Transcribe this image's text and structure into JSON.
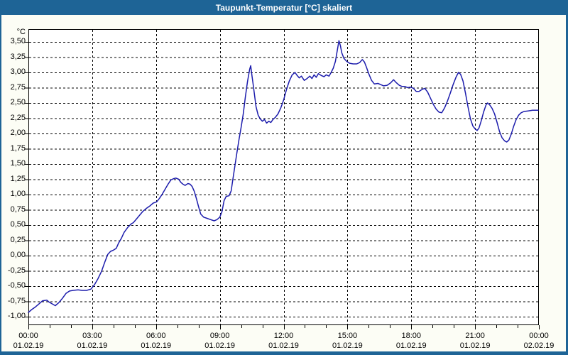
{
  "window": {
    "title": "Taupunkt-Temperatur [°C] skaliert"
  },
  "colors": {
    "titlebar": "#1e6496",
    "window_border": "#1e6496",
    "content_bg": "#fcfdf5",
    "plot_bg": "#ffffff",
    "grid": "#000000",
    "axis": "#000000",
    "text": "#000000",
    "title_text": "#ffffff",
    "line": "#1c1cac"
  },
  "chart_data": {
    "type": "line",
    "title": "Taupunkt-Temperatur [°C] skaliert",
    "ylabel": "°C",
    "xlabel": "",
    "ylim": [
      -1.14,
      3.72
    ],
    "xlim_minutes": [
      0,
      1440
    ],
    "grid": "dashed",
    "legend_position": "none",
    "x_minor_tick_minutes": 60,
    "x_major_tick_minutes": 180,
    "y_ticks": [
      {
        "v": 3.5,
        "label": "3,50"
      },
      {
        "v": 3.25,
        "label": "3,25"
      },
      {
        "v": 3.0,
        "label": "3,00"
      },
      {
        "v": 2.75,
        "label": "2,75"
      },
      {
        "v": 2.5,
        "label": "2,50"
      },
      {
        "v": 2.25,
        "label": "2,25"
      },
      {
        "v": 2.0,
        "label": "2,00"
      },
      {
        "v": 1.75,
        "label": "1,75"
      },
      {
        "v": 1.5,
        "label": "1,50"
      },
      {
        "v": 1.25,
        "label": "1,25"
      },
      {
        "v": 1.0,
        "label": "1,00"
      },
      {
        "v": 0.75,
        "label": "0,75"
      },
      {
        "v": 0.5,
        "label": "0,50"
      },
      {
        "v": 0.25,
        "label": "0,25"
      },
      {
        "v": 0.0,
        "label": "0,00"
      },
      {
        "v": -0.25,
        "label": "-0,25"
      },
      {
        "v": -0.5,
        "label": "-0,50"
      },
      {
        "v": -0.75,
        "label": "-0,75"
      },
      {
        "v": -1.0,
        "label": "-1,00"
      }
    ],
    "x_ticks": [
      {
        "t": 0,
        "time": "00:00",
        "date": "01.02.19"
      },
      {
        "t": 180,
        "time": "03:00",
        "date": "01.02.19"
      },
      {
        "t": 360,
        "time": "06:00",
        "date": "01.02.19"
      },
      {
        "t": 540,
        "time": "09:00",
        "date": "01.02.19"
      },
      {
        "t": 720,
        "time": "12:00",
        "date": "01.02.19"
      },
      {
        "t": 900,
        "time": "15:00",
        "date": "01.02.19"
      },
      {
        "t": 1080,
        "time": "18:00",
        "date": "01.02.19"
      },
      {
        "t": 1260,
        "time": "21:00",
        "date": "01.02.19"
      },
      {
        "t": 1440,
        "time": "00:00",
        "date": "02.02.19"
      }
    ],
    "series": [
      {
        "name": "Taupunkt-Temperatur",
        "color": "#1c1cac",
        "points": [
          [
            0,
            -0.93
          ],
          [
            10,
            -0.88
          ],
          [
            20,
            -0.84
          ],
          [
            30,
            -0.79
          ],
          [
            40,
            -0.74
          ],
          [
            52,
            -0.73
          ],
          [
            58,
            -0.76
          ],
          [
            64,
            -0.78
          ],
          [
            76,
            -0.82
          ],
          [
            86,
            -0.77
          ],
          [
            96,
            -0.7
          ],
          [
            106,
            -0.62
          ],
          [
            116,
            -0.58
          ],
          [
            126,
            -0.57
          ],
          [
            140,
            -0.56
          ],
          [
            152,
            -0.57
          ],
          [
            164,
            -0.57
          ],
          [
            176,
            -0.55
          ],
          [
            186,
            -0.48
          ],
          [
            196,
            -0.38
          ],
          [
            206,
            -0.26
          ],
          [
            216,
            -0.1
          ],
          [
            224,
            0.02
          ],
          [
            232,
            0.07
          ],
          [
            240,
            0.09
          ],
          [
            248,
            0.12
          ],
          [
            254,
            0.2
          ],
          [
            262,
            0.28
          ],
          [
            270,
            0.38
          ],
          [
            280,
            0.46
          ],
          [
            290,
            0.52
          ],
          [
            296,
            0.54
          ],
          [
            302,
            0.58
          ],
          [
            312,
            0.65
          ],
          [
            322,
            0.72
          ],
          [
            332,
            0.77
          ],
          [
            342,
            0.81
          ],
          [
            352,
            0.86
          ],
          [
            362,
            0.88
          ],
          [
            370,
            0.94
          ],
          [
            378,
            1.01
          ],
          [
            386,
            1.09
          ],
          [
            394,
            1.17
          ],
          [
            402,
            1.24
          ],
          [
            410,
            1.26
          ],
          [
            416,
            1.27
          ],
          [
            424,
            1.25
          ],
          [
            430,
            1.2
          ],
          [
            436,
            1.17
          ],
          [
            442,
            1.15
          ],
          [
            450,
            1.18
          ],
          [
            456,
            1.17
          ],
          [
            462,
            1.13
          ],
          [
            468,
            1.05
          ],
          [
            474,
            0.93
          ],
          [
            480,
            0.8
          ],
          [
            486,
            0.68
          ],
          [
            494,
            0.63
          ],
          [
            504,
            0.61
          ],
          [
            514,
            0.59
          ],
          [
            524,
            0.57
          ],
          [
            532,
            0.59
          ],
          [
            540,
            0.63
          ],
          [
            546,
            0.72
          ],
          [
            552,
            0.9
          ],
          [
            558,
            0.97
          ],
          [
            566,
            0.98
          ],
          [
            572,
            1.06
          ],
          [
            576,
            1.22
          ],
          [
            582,
            1.45
          ],
          [
            588,
            1.68
          ],
          [
            594,
            1.9
          ],
          [
            600,
            2.1
          ],
          [
            606,
            2.32
          ],
          [
            612,
            2.6
          ],
          [
            618,
            2.85
          ],
          [
            624,
            3.05
          ],
          [
            627,
            3.11
          ],
          [
            630,
            2.97
          ],
          [
            634,
            2.8
          ],
          [
            638,
            2.62
          ],
          [
            642,
            2.44
          ],
          [
            648,
            2.3
          ],
          [
            654,
            2.24
          ],
          [
            660,
            2.2
          ],
          [
            666,
            2.23
          ],
          [
            672,
            2.17
          ],
          [
            678,
            2.2
          ],
          [
            684,
            2.18
          ],
          [
            690,
            2.23
          ],
          [
            696,
            2.26
          ],
          [
            704,
            2.32
          ],
          [
            712,
            2.42
          ],
          [
            720,
            2.55
          ],
          [
            728,
            2.72
          ],
          [
            736,
            2.86
          ],
          [
            744,
            2.96
          ],
          [
            752,
            3.0
          ],
          [
            758,
            2.95
          ],
          [
            764,
            2.91
          ],
          [
            770,
            2.94
          ],
          [
            778,
            2.87
          ],
          [
            786,
            2.9
          ],
          [
            794,
            2.94
          ],
          [
            800,
            2.9
          ],
          [
            806,
            2.96
          ],
          [
            812,
            2.92
          ],
          [
            818,
            2.98
          ],
          [
            826,
            2.95
          ],
          [
            834,
            2.93
          ],
          [
            840,
            2.96
          ],
          [
            848,
            2.94
          ],
          [
            854,
            3.0
          ],
          [
            860,
            3.07
          ],
          [
            866,
            3.18
          ],
          [
            871,
            3.35
          ],
          [
            876,
            3.52
          ],
          [
            880,
            3.44
          ],
          [
            884,
            3.32
          ],
          [
            890,
            3.23
          ],
          [
            898,
            3.18
          ],
          [
            906,
            3.15
          ],
          [
            916,
            3.14
          ],
          [
            926,
            3.14
          ],
          [
            934,
            3.16
          ],
          [
            942,
            3.21
          ],
          [
            948,
            3.17
          ],
          [
            954,
            3.08
          ],
          [
            960,
            2.98
          ],
          [
            968,
            2.87
          ],
          [
            976,
            2.81
          ],
          [
            986,
            2.82
          ],
          [
            994,
            2.8
          ],
          [
            1002,
            2.78
          ],
          [
            1012,
            2.79
          ],
          [
            1022,
            2.83
          ],
          [
            1030,
            2.88
          ],
          [
            1038,
            2.83
          ],
          [
            1046,
            2.79
          ],
          [
            1054,
            2.77
          ],
          [
            1062,
            2.77
          ],
          [
            1070,
            2.75
          ],
          [
            1078,
            2.76
          ],
          [
            1086,
            2.74
          ],
          [
            1094,
            2.69
          ],
          [
            1102,
            2.69
          ],
          [
            1110,
            2.72
          ],
          [
            1118,
            2.74
          ],
          [
            1126,
            2.68
          ],
          [
            1134,
            2.58
          ],
          [
            1142,
            2.48
          ],
          [
            1150,
            2.4
          ],
          [
            1158,
            2.35
          ],
          [
            1166,
            2.34
          ],
          [
            1174,
            2.42
          ],
          [
            1182,
            2.53
          ],
          [
            1190,
            2.66
          ],
          [
            1198,
            2.8
          ],
          [
            1206,
            2.92
          ],
          [
            1213,
            3.0
          ],
          [
            1219,
            2.97
          ],
          [
            1226,
            2.86
          ],
          [
            1233,
            2.66
          ],
          [
            1240,
            2.44
          ],
          [
            1247,
            2.24
          ],
          [
            1254,
            2.12
          ],
          [
            1261,
            2.07
          ],
          [
            1266,
            2.05
          ],
          [
            1271,
            2.09
          ],
          [
            1277,
            2.2
          ],
          [
            1284,
            2.35
          ],
          [
            1291,
            2.47
          ],
          [
            1295,
            2.5
          ],
          [
            1301,
            2.47
          ],
          [
            1308,
            2.41
          ],
          [
            1315,
            2.32
          ],
          [
            1322,
            2.18
          ],
          [
            1329,
            2.03
          ],
          [
            1336,
            1.93
          ],
          [
            1343,
            1.88
          ],
          [
            1349,
            1.86
          ],
          [
            1355,
            1.89
          ],
          [
            1362,
            1.99
          ],
          [
            1369,
            2.12
          ],
          [
            1376,
            2.23
          ],
          [
            1383,
            2.3
          ],
          [
            1390,
            2.34
          ],
          [
            1398,
            2.36
          ],
          [
            1410,
            2.37
          ],
          [
            1422,
            2.38
          ],
          [
            1438,
            2.38
          ]
        ]
      }
    ]
  }
}
